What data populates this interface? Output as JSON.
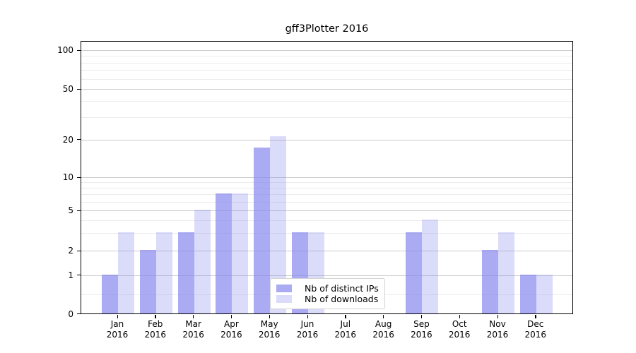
{
  "title": "gff3Plotter 2016",
  "colors": {
    "bar_base": "#8888ee",
    "bar_dark_rgba": "rgba(136,136,238,0.7)",
    "bar_light_rgba": "rgba(136,136,238,0.3)",
    "grid_major": "#cccccc",
    "grid_minor": "#ececec",
    "axis": "#000000"
  },
  "legend": {
    "items": [
      {
        "label": "Nb of distinct IPs",
        "swatch": "bar-swatch-dark"
      },
      {
        "label": "Nb of downloads",
        "swatch": "bar-swatch-light"
      }
    ]
  },
  "y_axis": {
    "tick_labels": [
      "100",
      "50",
      "20",
      "10",
      "5",
      "2",
      "1",
      "0"
    ],
    "tick_values": [
      100,
      50,
      20,
      10,
      5,
      2,
      1,
      0
    ],
    "minor_gridline_values": [
      0.5,
      3,
      4,
      6,
      7,
      8,
      9,
      30,
      40,
      60,
      70,
      80,
      90
    ],
    "major_gridline_values": [
      1,
      2,
      5,
      10,
      20,
      50,
      100
    ]
  },
  "x_axis": {
    "categories": [
      {
        "month": "Jan",
        "year": "2016"
      },
      {
        "month": "Feb",
        "year": "2016"
      },
      {
        "month": "Mar",
        "year": "2016"
      },
      {
        "month": "Apr",
        "year": "2016"
      },
      {
        "month": "May",
        "year": "2016"
      },
      {
        "month": "Jun",
        "year": "2016"
      },
      {
        "month": "Jul",
        "year": "2016"
      },
      {
        "month": "Aug",
        "year": "2016"
      },
      {
        "month": "Sep",
        "year": "2016"
      },
      {
        "month": "Oct",
        "year": "2016"
      },
      {
        "month": "Nov",
        "year": "2016"
      },
      {
        "month": "Dec",
        "year": "2016"
      }
    ]
  },
  "chart_data": {
    "type": "bar",
    "title": "gff3Plotter 2016",
    "categories": [
      "Jan 2016",
      "Feb 2016",
      "Mar 2016",
      "Apr 2016",
      "May 2016",
      "Jun 2016",
      "Jul 2016",
      "Aug 2016",
      "Sep 2016",
      "Oct 2016",
      "Nov 2016",
      "Dec 2016"
    ],
    "series": [
      {
        "name": "Nb of distinct IPs",
        "values": [
          1,
          2,
          3,
          7,
          17,
          3,
          0,
          0,
          3,
          0,
          2,
          1
        ]
      },
      {
        "name": "Nb of downloads",
        "values": [
          3,
          3,
          5,
          7,
          21,
          3,
          0,
          0,
          4,
          0,
          3,
          1
        ]
      }
    ],
    "xlabel": "",
    "ylabel": "",
    "yscale": "log-with-zero-baseline",
    "yticks": [
      0,
      1,
      2,
      5,
      10,
      20,
      50,
      100
    ],
    "ylim": [
      0,
      118
    ],
    "grid": true,
    "legend_position": "lower center inside plot"
  }
}
